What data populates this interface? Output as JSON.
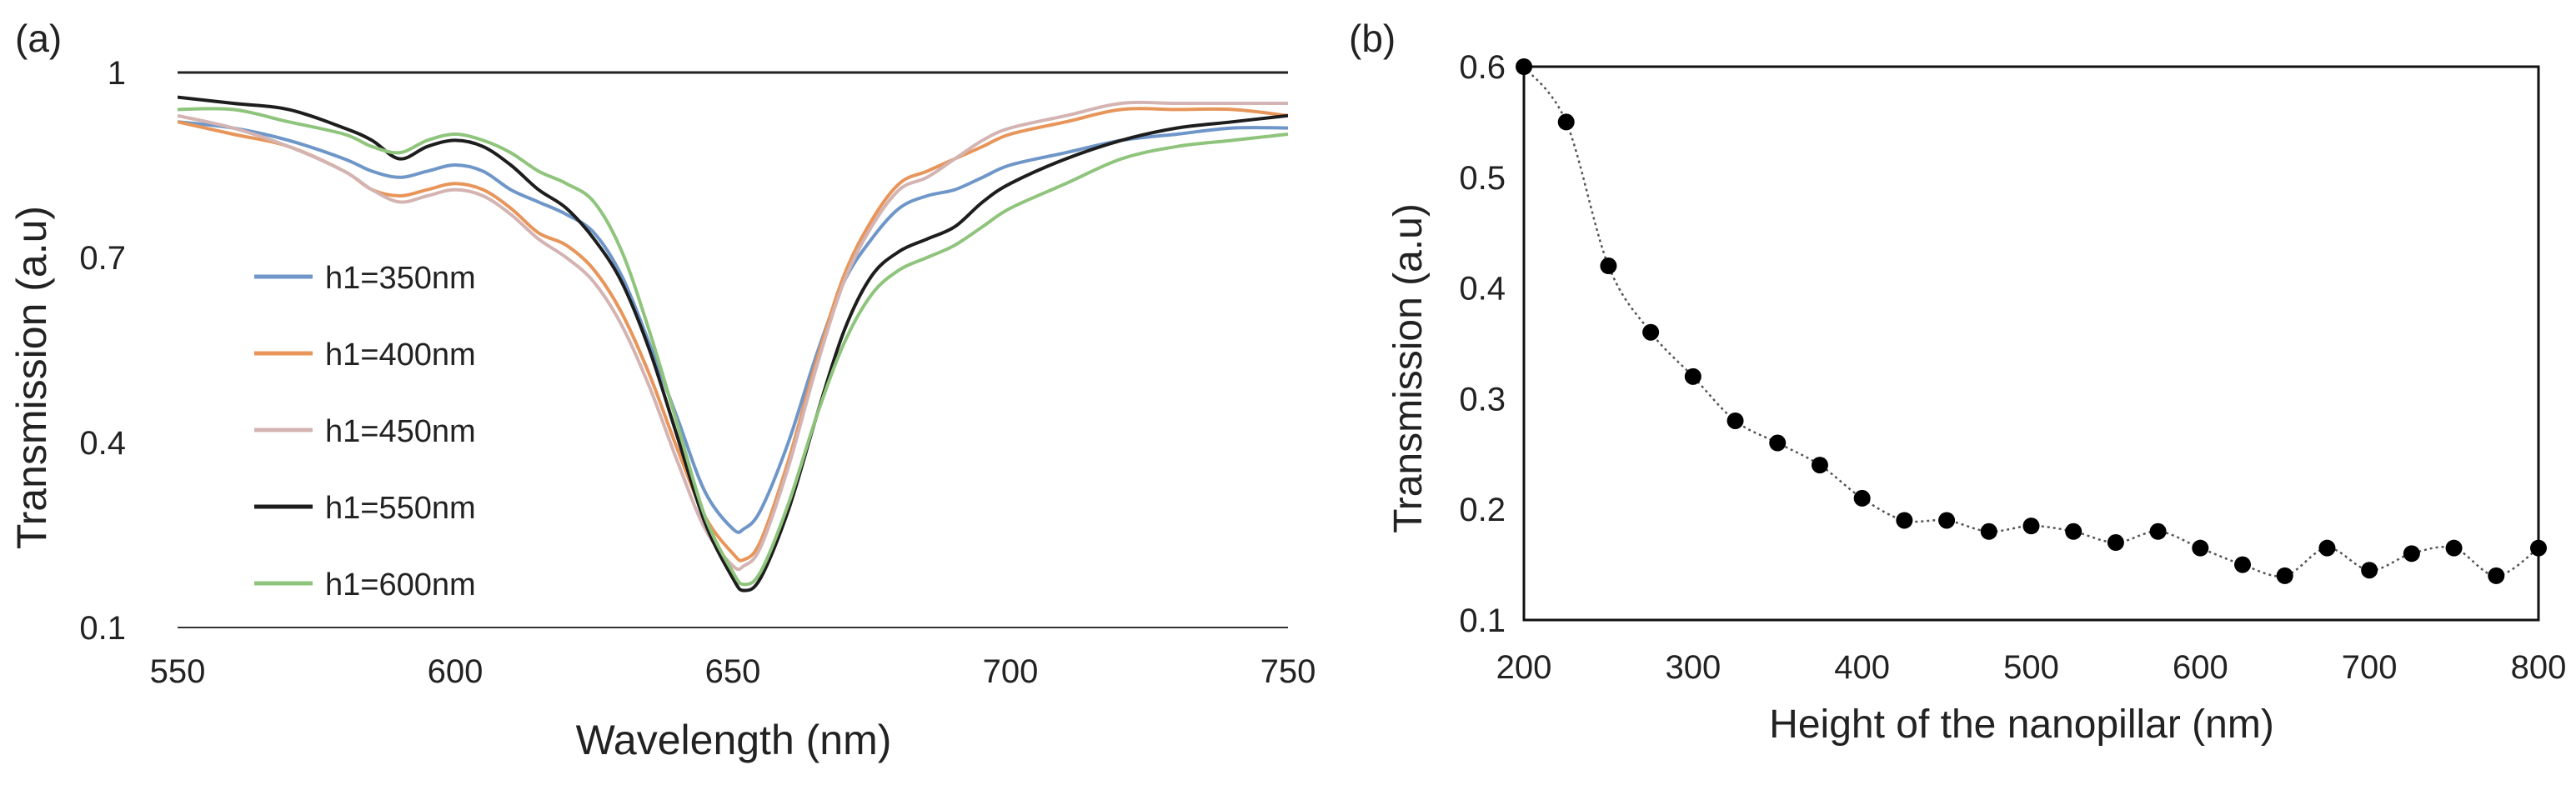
{
  "chart_data": [
    {
      "panel_label": "(a)",
      "type": "line",
      "title": "",
      "xlabel": "Wavelength (nm)",
      "ylabel": "Transmission (a.u)",
      "xlim": [
        550,
        750
      ],
      "ylim": [
        0.1,
        1.0
      ],
      "xticks": [
        550,
        600,
        650,
        700,
        750
      ],
      "yticks": [
        0.1,
        0.4,
        0.7,
        1.0
      ],
      "ytick_labels": [
        "0.1",
        "0.4",
        "0.7",
        "1"
      ],
      "grid": false,
      "legend_position": "center-left",
      "series": [
        {
          "name": "h1=350nm",
          "color": "#6f96c8",
          "x": [
            550,
            560,
            570,
            580,
            585,
            590,
            595,
            600,
            605,
            610,
            615,
            620,
            625,
            630,
            635,
            640,
            645,
            650,
            652,
            655,
            660,
            665,
            670,
            675,
            680,
            685,
            690,
            695,
            700,
            710,
            720,
            730,
            740,
            750
          ],
          "y": [
            0.92,
            0.91,
            0.89,
            0.86,
            0.84,
            0.83,
            0.84,
            0.85,
            0.84,
            0.81,
            0.79,
            0.77,
            0.74,
            0.67,
            0.56,
            0.44,
            0.32,
            0.26,
            0.26,
            0.29,
            0.4,
            0.54,
            0.66,
            0.73,
            0.78,
            0.8,
            0.81,
            0.83,
            0.85,
            0.87,
            0.89,
            0.9,
            0.91,
            0.91
          ]
        },
        {
          "name": "h1=400nm",
          "color": "#e8955a",
          "x": [
            550,
            560,
            570,
            580,
            585,
            590,
            595,
            600,
            605,
            610,
            615,
            620,
            625,
            630,
            635,
            640,
            645,
            650,
            652,
            655,
            660,
            665,
            670,
            675,
            680,
            685,
            690,
            695,
            700,
            710,
            720,
            730,
            740,
            750
          ],
          "y": [
            0.92,
            0.9,
            0.88,
            0.84,
            0.81,
            0.8,
            0.81,
            0.82,
            0.81,
            0.78,
            0.74,
            0.72,
            0.68,
            0.61,
            0.51,
            0.39,
            0.28,
            0.22,
            0.21,
            0.24,
            0.37,
            0.53,
            0.67,
            0.76,
            0.82,
            0.84,
            0.86,
            0.88,
            0.9,
            0.92,
            0.94,
            0.94,
            0.94,
            0.93
          ]
        },
        {
          "name": "h1=450nm",
          "color": "#d4b4b2",
          "x": [
            550,
            560,
            570,
            580,
            585,
            590,
            595,
            600,
            605,
            610,
            615,
            620,
            625,
            630,
            635,
            640,
            645,
            650,
            652,
            655,
            660,
            665,
            670,
            675,
            680,
            685,
            690,
            695,
            700,
            710,
            720,
            730,
            740,
            750
          ],
          "y": [
            0.93,
            0.91,
            0.88,
            0.84,
            0.81,
            0.79,
            0.8,
            0.81,
            0.8,
            0.77,
            0.73,
            0.7,
            0.66,
            0.59,
            0.49,
            0.37,
            0.26,
            0.2,
            0.2,
            0.23,
            0.36,
            0.52,
            0.66,
            0.75,
            0.81,
            0.83,
            0.86,
            0.89,
            0.91,
            0.93,
            0.95,
            0.95,
            0.95,
            0.95
          ]
        },
        {
          "name": "h1=550nm",
          "color": "#1d1d1d",
          "x": [
            550,
            560,
            570,
            580,
            585,
            590,
            595,
            600,
            605,
            610,
            615,
            620,
            625,
            630,
            635,
            640,
            645,
            650,
            652,
            655,
            660,
            665,
            670,
            675,
            680,
            685,
            690,
            695,
            700,
            710,
            720,
            730,
            740,
            750
          ],
          "y": [
            0.96,
            0.95,
            0.94,
            0.91,
            0.89,
            0.86,
            0.88,
            0.89,
            0.88,
            0.85,
            0.81,
            0.78,
            0.73,
            0.66,
            0.55,
            0.41,
            0.27,
            0.18,
            0.16,
            0.18,
            0.29,
            0.44,
            0.58,
            0.67,
            0.71,
            0.73,
            0.75,
            0.79,
            0.82,
            0.86,
            0.89,
            0.91,
            0.92,
            0.93
          ]
        },
        {
          "name": "h1=600nm",
          "color": "#8fc47c",
          "x": [
            550,
            560,
            570,
            580,
            585,
            590,
            595,
            600,
            605,
            610,
            615,
            620,
            625,
            630,
            635,
            640,
            645,
            650,
            652,
            655,
            660,
            665,
            670,
            675,
            680,
            685,
            690,
            695,
            700,
            710,
            720,
            730,
            740,
            750
          ],
          "y": [
            0.94,
            0.94,
            0.92,
            0.9,
            0.88,
            0.87,
            0.89,
            0.9,
            0.89,
            0.87,
            0.84,
            0.82,
            0.79,
            0.71,
            0.58,
            0.43,
            0.28,
            0.19,
            0.17,
            0.19,
            0.3,
            0.44,
            0.56,
            0.64,
            0.68,
            0.7,
            0.72,
            0.75,
            0.78,
            0.82,
            0.86,
            0.88,
            0.89,
            0.9
          ]
        }
      ]
    },
    {
      "panel_label": "(b)",
      "type": "scatter",
      "title": "",
      "xlabel": "Height of the nanopillar (nm)",
      "ylabel": "Transmission (a.u)",
      "xlim": [
        200,
        800
      ],
      "ylim": [
        0.1,
        0.6
      ],
      "xticks": [
        200,
        300,
        400,
        500,
        600,
        700,
        800
      ],
      "yticks": [
        0.1,
        0.2,
        0.3,
        0.4,
        0.5,
        0.6
      ],
      "ytick_labels": [
        "0.1",
        "0.2",
        "0.3",
        "0.4",
        "0.5",
        "0.6"
      ],
      "grid": false,
      "marker_color": "#000000",
      "connector": "smooth dotted line",
      "series": [
        {
          "name": "Transmission",
          "x": [
            200,
            225,
            250,
            275,
            300,
            325,
            350,
            375,
            400,
            425,
            450,
            475,
            500,
            525,
            550,
            575,
            600,
            625,
            650,
            675,
            700,
            725,
            750,
            775,
            800
          ],
          "y": [
            0.6,
            0.55,
            0.42,
            0.36,
            0.32,
            0.28,
            0.26,
            0.24,
            0.21,
            0.19,
            0.19,
            0.18,
            0.185,
            0.18,
            0.17,
            0.18,
            0.165,
            0.15,
            0.14,
            0.165,
            0.145,
            0.16,
            0.165,
            0.14,
            0.165
          ]
        }
      ]
    }
  ]
}
